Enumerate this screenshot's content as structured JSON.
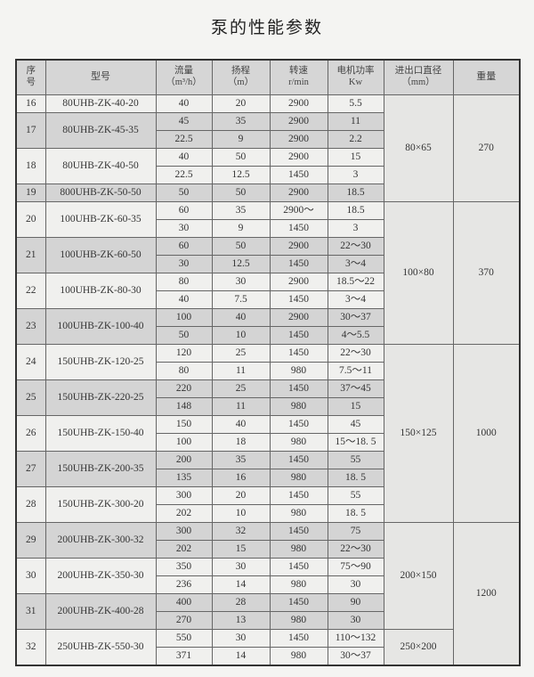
{
  "title": "泵的性能参数",
  "headers": {
    "no": [
      "序",
      "号"
    ],
    "model": "型号",
    "flow": {
      "label": "流量",
      "unit": "（m³/h）"
    },
    "head": {
      "label": "扬程",
      "unit": "（m）"
    },
    "speed": {
      "label": "转速",
      "unit": "r/min"
    },
    "power": {
      "label": "电机功率",
      "unit": "Kw"
    },
    "diameter": {
      "label": "进出口直径",
      "unit": "（mm）"
    },
    "weight": "重量"
  },
  "groups": [
    {
      "no": "16",
      "model": "80UHB-ZK-40-20",
      "rows": [
        [
          "40",
          "20",
          "2900",
          "5.5"
        ]
      ]
    },
    {
      "no": "17",
      "model": "80UHB-ZK-45-35",
      "rows": [
        [
          "45",
          "35",
          "2900",
          "11"
        ],
        [
          "22.5",
          "9",
          "2900",
          "2.2"
        ]
      ]
    },
    {
      "no": "18",
      "model": "80UHB-ZK-40-50",
      "rows": [
        [
          "40",
          "50",
          "2900",
          "15"
        ],
        [
          "22.5",
          "12.5",
          "1450",
          "3"
        ]
      ]
    },
    {
      "no": "19",
      "model": "800UHB-ZK-50-50",
      "rows": [
        [
          "50",
          "50",
          "2900",
          "18.5"
        ]
      ]
    },
    {
      "no": "20",
      "model": "100UHB-ZK-60-35",
      "rows": [
        [
          "60",
          "35",
          "2900～",
          "18.5"
        ],
        [
          "30",
          "9",
          "1450",
          "3"
        ]
      ]
    },
    {
      "no": "21",
      "model": "100UHB-ZK-60-50",
      "rows": [
        [
          "60",
          "50",
          "2900",
          "22～30"
        ],
        [
          "30",
          "12.5",
          "1450",
          "3～4"
        ]
      ]
    },
    {
      "no": "22",
      "model": "100UHB-ZK-80-30",
      "rows": [
        [
          "80",
          "30",
          "2900",
          "18.5～22"
        ],
        [
          "40",
          "7.5",
          "1450",
          "3～4"
        ]
      ]
    },
    {
      "no": "23",
      "model": "100UHB-ZK-100-40",
      "rows": [
        [
          "100",
          "40",
          "2900",
          "30～37"
        ],
        [
          "50",
          "10",
          "1450",
          "4～5.5"
        ]
      ]
    },
    {
      "no": "24",
      "model": "150UHB-ZK-120-25",
      "rows": [
        [
          "120",
          "25",
          "1450",
          "22～30"
        ],
        [
          "80",
          "11",
          "980",
          "7.5～11"
        ]
      ]
    },
    {
      "no": "25",
      "model": "150UHB-ZK-220-25",
      "rows": [
        [
          "220",
          "25",
          "1450",
          "37～45"
        ],
        [
          "148",
          "11",
          "980",
          "15"
        ]
      ]
    },
    {
      "no": "26",
      "model": "150UHB-ZK-150-40",
      "rows": [
        [
          "150",
          "40",
          "1450",
          "45"
        ],
        [
          "100",
          "18",
          "980",
          "15～18. 5"
        ]
      ]
    },
    {
      "no": "27",
      "model": "150UHB-ZK-200-35",
      "rows": [
        [
          "200",
          "35",
          "1450",
          "55"
        ],
        [
          "135",
          "16",
          "980",
          "18. 5"
        ]
      ]
    },
    {
      "no": "28",
      "model": "150UHB-ZK-300-20",
      "rows": [
        [
          "300",
          "20",
          "1450",
          "55"
        ],
        [
          "202",
          "10",
          "980",
          "18. 5"
        ]
      ]
    },
    {
      "no": "29",
      "model": "200UHB-ZK-300-32",
      "rows": [
        [
          "300",
          "32",
          "1450",
          "75"
        ],
        [
          "202",
          "15",
          "980",
          "22～30"
        ]
      ]
    },
    {
      "no": "30",
      "model": "200UHB-ZK-350-30",
      "rows": [
        [
          "350",
          "30",
          "1450",
          "75～90"
        ],
        [
          "236",
          "14",
          "980",
          "30"
        ]
      ]
    },
    {
      "no": "31",
      "model": "200UHB-ZK-400-28",
      "rows": [
        [
          "400",
          "28",
          "1450",
          "90"
        ],
        [
          "270",
          "13",
          "980",
          "30"
        ]
      ]
    },
    {
      "no": "32",
      "model": "250UHB-ZK-550-30",
      "rows": [
        [
          "550",
          "30",
          "1450",
          "110～132"
        ],
        [
          "371",
          "14",
          "980",
          "30～37"
        ]
      ]
    }
  ],
  "diameters": [
    {
      "value": "80×65",
      "groups": 4
    },
    {
      "value": "100×80",
      "groups": 4
    },
    {
      "value": "150×125",
      "groups": 5
    },
    {
      "value": "200×150",
      "groups": 3
    },
    {
      "value": "250×200",
      "groups": 1
    }
  ],
  "weights": [
    {
      "value": "270",
      "groups": 4
    },
    {
      "value": "370",
      "groups": 4
    },
    {
      "value": "1000",
      "groups": 5
    },
    {
      "value": "1200",
      "groups": 4
    }
  ]
}
